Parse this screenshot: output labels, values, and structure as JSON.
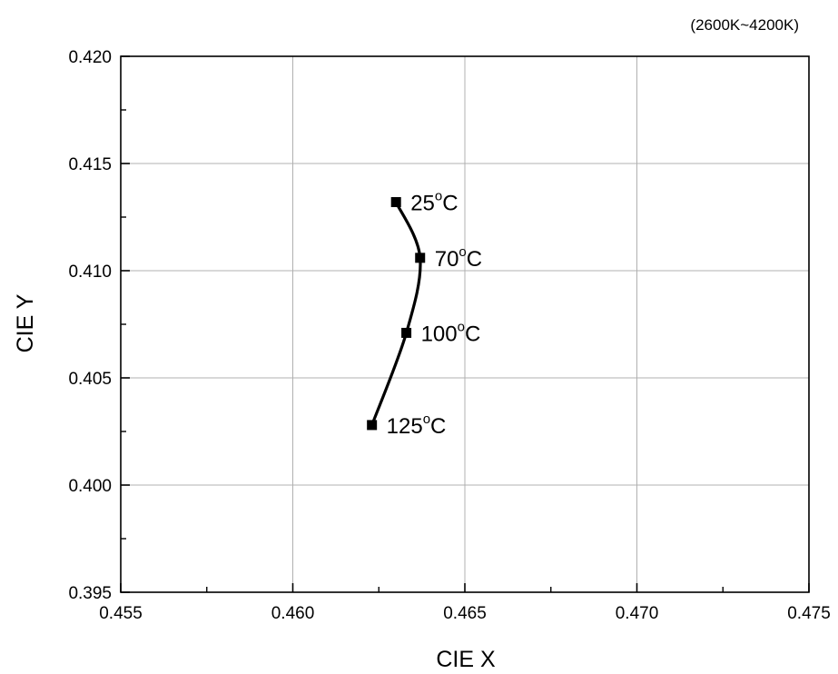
{
  "chart_data": {
    "type": "line",
    "title": "",
    "note": "(2600K~4200K)",
    "xlabel": "CIE X",
    "ylabel": "CIE Y",
    "xlim": [
      0.455,
      0.475
    ],
    "ylim": [
      0.395,
      0.42
    ],
    "x_ticks": [
      "0.455",
      "0.460",
      "0.465",
      "0.470",
      "0.475"
    ],
    "y_ticks": [
      "0.395",
      "0.400",
      "0.405",
      "0.410",
      "0.415",
      "0.420"
    ],
    "grid": true,
    "legend": "none",
    "series": [
      {
        "color": "#000000",
        "points": [
          {
            "x": 0.463,
            "y": 0.4132,
            "label": "25",
            "unit": "oC"
          },
          {
            "x": 0.4637,
            "y": 0.4106,
            "label": "70",
            "unit": "oC"
          },
          {
            "x": 0.4633,
            "y": 0.4071,
            "label": "100",
            "unit": "oC"
          },
          {
            "x": 0.4623,
            "y": 0.4028,
            "label": "125",
            "unit": "oC"
          }
        ]
      }
    ]
  }
}
